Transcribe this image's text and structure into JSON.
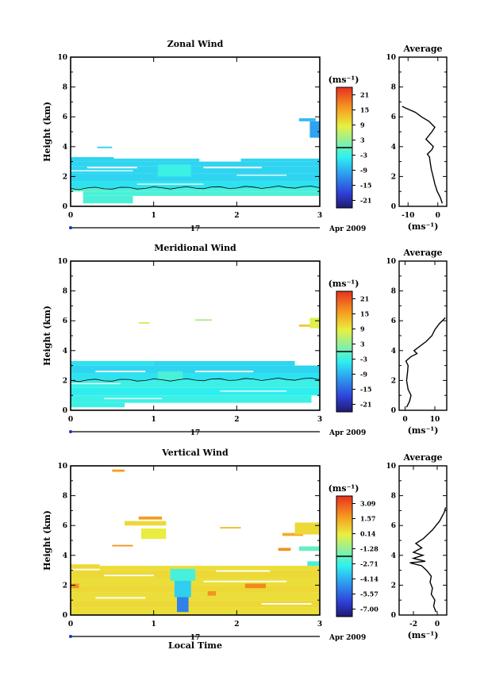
{
  "figure": {
    "date_label": "Apr 2009",
    "day_label": "17",
    "bottom_xlabel": "Local Time",
    "ylabel": "Height (km)",
    "average_title": "Average",
    "unit_label": "(ms⁻¹)"
  },
  "chart_data": [
    {
      "type": "heatmap",
      "title": "Zonal Wind",
      "xlabel": "",
      "ylabel": "Height (km)",
      "xlim": [
        0,
        3
      ],
      "ylim": [
        0,
        10
      ],
      "xticks": [
        "0",
        "1",
        "2",
        "3"
      ],
      "yticks": [
        "0",
        "2",
        "4",
        "6",
        "8",
        "10"
      ],
      "colorbar": {
        "unit": "(ms⁻¹)",
        "ticks": [
          "21",
          "15",
          "9",
          "3",
          "-3",
          "-9",
          "-15",
          "-21"
        ],
        "range": [
          -24,
          24
        ]
      },
      "cells": [
        {
          "x": [
            0.0,
            0.52
          ],
          "y": [
            3.0,
            3.3
          ],
          "v": -6
        },
        {
          "x": [
            0.52,
            1.55
          ],
          "y": [
            3.0,
            3.2
          ],
          "v": -6
        },
        {
          "x": [
            2.05,
            3.0
          ],
          "y": [
            3.0,
            3.2
          ],
          "v": -6
        },
        {
          "x": [
            0.0,
            3.0
          ],
          "y": [
            2.7,
            3.0
          ],
          "v": -6
        },
        {
          "x": [
            0.0,
            3.0
          ],
          "y": [
            2.2,
            2.7
          ],
          "v": -6
        },
        {
          "x": [
            0.0,
            3.0
          ],
          "y": [
            1.7,
            2.2
          ],
          "v": -6
        },
        {
          "x": [
            0.0,
            3.0
          ],
          "y": [
            1.2,
            1.7
          ],
          "v": -5
        },
        {
          "x": [
            0.0,
            0.45
          ],
          "y": [
            1.0,
            1.2
          ],
          "v": -1
        },
        {
          "x": [
            0.45,
            3.0
          ],
          "y": [
            1.0,
            1.2
          ],
          "v": -2
        },
        {
          "x": [
            0.15,
            3.0
          ],
          "y": [
            0.7,
            1.0
          ],
          "v": -2
        },
        {
          "x": [
            0.15,
            0.75
          ],
          "y": [
            0.2,
            0.7
          ],
          "v": -2
        },
        {
          "x": [
            1.05,
            1.45
          ],
          "y": [
            2.0,
            2.8
          ],
          "v": -3
        },
        {
          "x": [
            0.32,
            0.5
          ],
          "y": [
            3.9,
            4.0
          ],
          "v": -6
        },
        {
          "x": [
            2.75,
            2.95
          ],
          "y": [
            5.7,
            5.9
          ],
          "v": -8
        },
        {
          "x": [
            2.88,
            3.0
          ],
          "y": [
            4.6,
            5.7
          ],
          "v": -10
        }
      ],
      "gaps": [
        {
          "x": [
            0.2,
            0.8
          ],
          "y": [
            2.55,
            2.65
          ]
        },
        {
          "x": [
            1.6,
            2.3
          ],
          "y": [
            2.55,
            2.65
          ]
        },
        {
          "x": [
            0.0,
            0.75
          ],
          "y": [
            2.35,
            2.42
          ]
        },
        {
          "x": [
            2.0,
            2.6
          ],
          "y": [
            2.05,
            2.12
          ]
        },
        {
          "x": [
            0.8,
            1.6
          ],
          "y": [
            1.45,
            1.52
          ]
        }
      ],
      "contour_height": 1.2,
      "average_profile": {
        "xlabel": "(ms⁻¹)",
        "xlim": [
          -13,
          3
        ],
        "xticks": [
          "-10",
          "0"
        ],
        "ylim": [
          0,
          10
        ],
        "yticks": [
          "0",
          "2",
          "4",
          "6",
          "8",
          "10"
        ],
        "points": [
          [
            1.5,
            0.2
          ],
          [
            0.8,
            0.6
          ],
          [
            -0.2,
            1.0
          ],
          [
            -1.0,
            1.5
          ],
          [
            -1.6,
            2.0
          ],
          [
            -2.2,
            2.5
          ],
          [
            -2.6,
            3.0
          ],
          [
            -2.8,
            3.3
          ],
          [
            -3.5,
            3.5
          ],
          [
            -2.0,
            3.8
          ],
          [
            -1.5,
            4.0
          ],
          [
            -2.5,
            4.2
          ],
          [
            -4.0,
            4.5
          ],
          [
            -2.0,
            5.0
          ],
          [
            -1.0,
            5.3
          ],
          [
            -3.0,
            5.7
          ],
          [
            -5.5,
            6.0
          ],
          [
            -7.5,
            6.3
          ],
          [
            -11.0,
            6.6
          ],
          [
            -12.0,
            6.7
          ]
        ]
      }
    },
    {
      "type": "heatmap",
      "title": "Meridional Wind",
      "xlabel": "",
      "ylabel": "Height (km)",
      "xlim": [
        0,
        3
      ],
      "ylim": [
        0,
        10
      ],
      "xticks": [
        "0",
        "1",
        "2",
        "3"
      ],
      "yticks": [
        "0",
        "2",
        "4",
        "6",
        "8",
        "10"
      ],
      "colorbar": {
        "unit": "(ms⁻¹)",
        "ticks": [
          "21",
          "15",
          "9",
          "3",
          "-3",
          "-9",
          "-15",
          "-21"
        ],
        "range": [
          -24,
          24
        ]
      },
      "cells": [
        {
          "x": [
            0.0,
            1.0
          ],
          "y": [
            3.0,
            3.3
          ],
          "v": -5
        },
        {
          "x": [
            1.0,
            2.7
          ],
          "y": [
            3.0,
            3.3
          ],
          "v": -6
        },
        {
          "x": [
            0.0,
            3.0
          ],
          "y": [
            2.5,
            3.0
          ],
          "v": -6
        },
        {
          "x": [
            0.0,
            3.0
          ],
          "y": [
            2.0,
            2.5
          ],
          "v": -5
        },
        {
          "x": [
            0.0,
            3.0
          ],
          "y": [
            1.5,
            2.0
          ],
          "v": -3
        },
        {
          "x": [
            0.0,
            3.0
          ],
          "y": [
            1.0,
            1.5
          ],
          "v": -4
        },
        {
          "x": [
            0.0,
            2.9
          ],
          "y": [
            0.5,
            1.0
          ],
          "v": -3
        },
        {
          "x": [
            0.0,
            0.65
          ],
          "y": [
            0.2,
            0.5
          ],
          "v": -3
        },
        {
          "x": [
            1.05,
            1.35
          ],
          "y": [
            2.0,
            2.6
          ],
          "v": -2
        },
        {
          "x": [
            2.88,
            3.0
          ],
          "y": [
            5.5,
            6.2
          ],
          "v": 8
        },
        {
          "x": [
            2.75,
            2.88
          ],
          "y": [
            5.6,
            5.75
          ],
          "v": 12
        },
        {
          "x": [
            0.82,
            0.95
          ],
          "y": [
            5.8,
            5.9
          ],
          "v": 7
        },
        {
          "x": [
            1.5,
            1.7
          ],
          "y": [
            6.0,
            6.1
          ],
          "v": 4
        }
      ],
      "gaps": [
        {
          "x": [
            0.3,
            0.9
          ],
          "y": [
            2.55,
            2.65
          ]
        },
        {
          "x": [
            1.5,
            2.2
          ],
          "y": [
            2.55,
            2.65
          ]
        },
        {
          "x": [
            0.0,
            0.6
          ],
          "y": [
            1.75,
            1.82
          ]
        },
        {
          "x": [
            1.8,
            2.6
          ],
          "y": [
            1.25,
            1.32
          ]
        },
        {
          "x": [
            0.4,
            1.1
          ],
          "y": [
            0.75,
            0.82
          ]
        }
      ],
      "contour_height": 2.0,
      "average_profile": {
        "xlabel": "(ms⁻¹)",
        "xlim": [
          -2,
          14
        ],
        "xticks": [
          "0",
          "10"
        ],
        "ylim": [
          0,
          10
        ],
        "yticks": [
          "0",
          "2",
          "4",
          "6",
          "8",
          "10"
        ],
        "points": [
          [
            0.5,
            0.2
          ],
          [
            1.5,
            0.6
          ],
          [
            2.0,
            1.0
          ],
          [
            1.0,
            1.4
          ],
          [
            0.5,
            2.0
          ],
          [
            0.8,
            2.5
          ],
          [
            1.0,
            3.0
          ],
          [
            0.3,
            3.3
          ],
          [
            2.0,
            3.6
          ],
          [
            4.0,
            3.8
          ],
          [
            3.0,
            4.0
          ],
          [
            5.0,
            4.3
          ],
          [
            7.0,
            4.6
          ],
          [
            9.0,
            5.0
          ],
          [
            10.0,
            5.4
          ],
          [
            11.5,
            5.8
          ],
          [
            12.5,
            6.0
          ],
          [
            13.5,
            6.2
          ]
        ]
      }
    },
    {
      "type": "heatmap",
      "title": "Vertical Wind",
      "xlabel": "Local Time",
      "ylabel": "Height (km)",
      "xlim": [
        0,
        3
      ],
      "ylim": [
        0,
        10
      ],
      "xticks": [
        "0",
        "1",
        "2",
        "3"
      ],
      "yticks": [
        "0",
        "2",
        "4",
        "6",
        "8",
        "10"
      ],
      "colorbar": {
        "unit": "(ms⁻¹)",
        "ticks": [
          "3.09",
          "1.57",
          "0.14",
          "-1.28",
          "-2.71",
          "-4.14",
          "-5.57",
          "-7.00"
        ],
        "range": [
          -7.72,
          3.83
        ]
      },
      "cells": [
        {
          "x": [
            0.0,
            0.35
          ],
          "y": [
            3.1,
            3.4
          ],
          "v": 0.6
        },
        {
          "x": [
            0.35,
            3.0
          ],
          "y": [
            3.0,
            3.3
          ],
          "v": 0.5
        },
        {
          "x": [
            0.0,
            3.0
          ],
          "y": [
            2.5,
            3.0
          ],
          "v": 0.6
        },
        {
          "x": [
            0.0,
            3.0
          ],
          "y": [
            2.0,
            2.5
          ],
          "v": 0.5
        },
        {
          "x": [
            0.0,
            3.0
          ],
          "y": [
            1.5,
            2.0
          ],
          "v": 0.6
        },
        {
          "x": [
            0.0,
            3.0
          ],
          "y": [
            1.0,
            1.5
          ],
          "v": 0.5
        },
        {
          "x": [
            0.0,
            3.0
          ],
          "y": [
            0.5,
            1.0
          ],
          "v": 0.6
        },
        {
          "x": [
            0.0,
            3.0
          ],
          "y": [
            0.0,
            0.5
          ],
          "v": 0.5
        },
        {
          "x": [
            1.2,
            1.5
          ],
          "y": [
            2.3,
            3.1
          ],
          "v": -2.5
        },
        {
          "x": [
            1.25,
            1.45
          ],
          "y": [
            1.2,
            2.3
          ],
          "v": -3.5
        },
        {
          "x": [
            1.28,
            1.42
          ],
          "y": [
            0.2,
            1.2
          ],
          "v": -5.0
        },
        {
          "x": [
            0.0,
            0.1
          ],
          "y": [
            1.8,
            2.1
          ],
          "v": 2.0
        },
        {
          "x": [
            2.1,
            2.35
          ],
          "y": [
            1.8,
            2.1
          ],
          "v": 2.2
        },
        {
          "x": [
            1.65,
            1.75
          ],
          "y": [
            1.3,
            1.6
          ],
          "v": 2.0
        },
        {
          "x": [
            0.82,
            1.1
          ],
          "y": [
            6.4,
            6.6
          ],
          "v": 1.8
        },
        {
          "x": [
            0.65,
            1.15
          ],
          "y": [
            6.0,
            6.3
          ],
          "v": 0.6
        },
        {
          "x": [
            0.85,
            1.15
          ],
          "y": [
            5.1,
            5.8
          ],
          "v": 0.2
        },
        {
          "x": [
            1.8,
            2.05
          ],
          "y": [
            5.8,
            5.9
          ],
          "v": 1.2
        },
        {
          "x": [
            0.5,
            0.65
          ],
          "y": [
            9.6,
            9.75
          ],
          "v": 1.8
        },
        {
          "x": [
            2.55,
            2.8
          ],
          "y": [
            5.3,
            5.5
          ],
          "v": 1.5
        },
        {
          "x": [
            2.7,
            3.0
          ],
          "y": [
            5.4,
            6.2
          ],
          "v": 0.6
        },
        {
          "x": [
            2.5,
            2.65
          ],
          "y": [
            4.3,
            4.5
          ],
          "v": 2.0
        },
        {
          "x": [
            2.75,
            3.0
          ],
          "y": [
            4.3,
            4.6
          ],
          "v": -2.0
        },
        {
          "x": [
            0.5,
            0.75
          ],
          "y": [
            4.6,
            4.7
          ],
          "v": 2.0
        },
        {
          "x": [
            2.85,
            3.0
          ],
          "y": [
            3.3,
            3.6
          ],
          "v": -2.5
        }
      ],
      "gaps": [
        {
          "x": [
            0.4,
            1.0
          ],
          "y": [
            2.6,
            2.7
          ]
        },
        {
          "x": [
            1.6,
            2.6
          ],
          "y": [
            2.2,
            2.3
          ]
        },
        {
          "x": [
            0.3,
            0.9
          ],
          "y": [
            1.1,
            1.2
          ]
        },
        {
          "x": [
            2.3,
            2.9
          ],
          "y": [
            0.7,
            0.8
          ]
        },
        {
          "x": [
            1.75,
            2.4
          ],
          "y": [
            2.9,
            3.0
          ]
        }
      ],
      "contour_height": null,
      "average_profile": {
        "xlabel": "(ms⁻¹)",
        "xlim": [
          -3.2,
          0.8
        ],
        "xticks": [
          "-2",
          "0"
        ],
        "ylim": [
          0,
          10
        ],
        "yticks": [
          "0",
          "2",
          "4",
          "6",
          "8",
          "10"
        ],
        "points": [
          [
            -0.1,
            0.2
          ],
          [
            -0.3,
            0.6
          ],
          [
            -0.2,
            1.0
          ],
          [
            -0.5,
            1.4
          ],
          [
            -0.4,
            1.8
          ],
          [
            -0.6,
            2.2
          ],
          [
            -0.5,
            2.6
          ],
          [
            -0.9,
            3.0
          ],
          [
            -1.3,
            3.3
          ],
          [
            -2.3,
            3.5
          ],
          [
            -1.0,
            3.6
          ],
          [
            -2.0,
            3.8
          ],
          [
            -1.2,
            4.0
          ],
          [
            -2.0,
            4.2
          ],
          [
            -1.3,
            4.5
          ],
          [
            -1.8,
            4.8
          ],
          [
            -1.2,
            5.1
          ],
          [
            -0.8,
            5.4
          ],
          [
            -0.4,
            5.7
          ],
          [
            -0.1,
            6.0
          ],
          [
            0.2,
            6.3
          ],
          [
            0.4,
            6.6
          ],
          [
            0.6,
            6.9
          ],
          [
            0.7,
            7.2
          ]
        ]
      }
    }
  ]
}
